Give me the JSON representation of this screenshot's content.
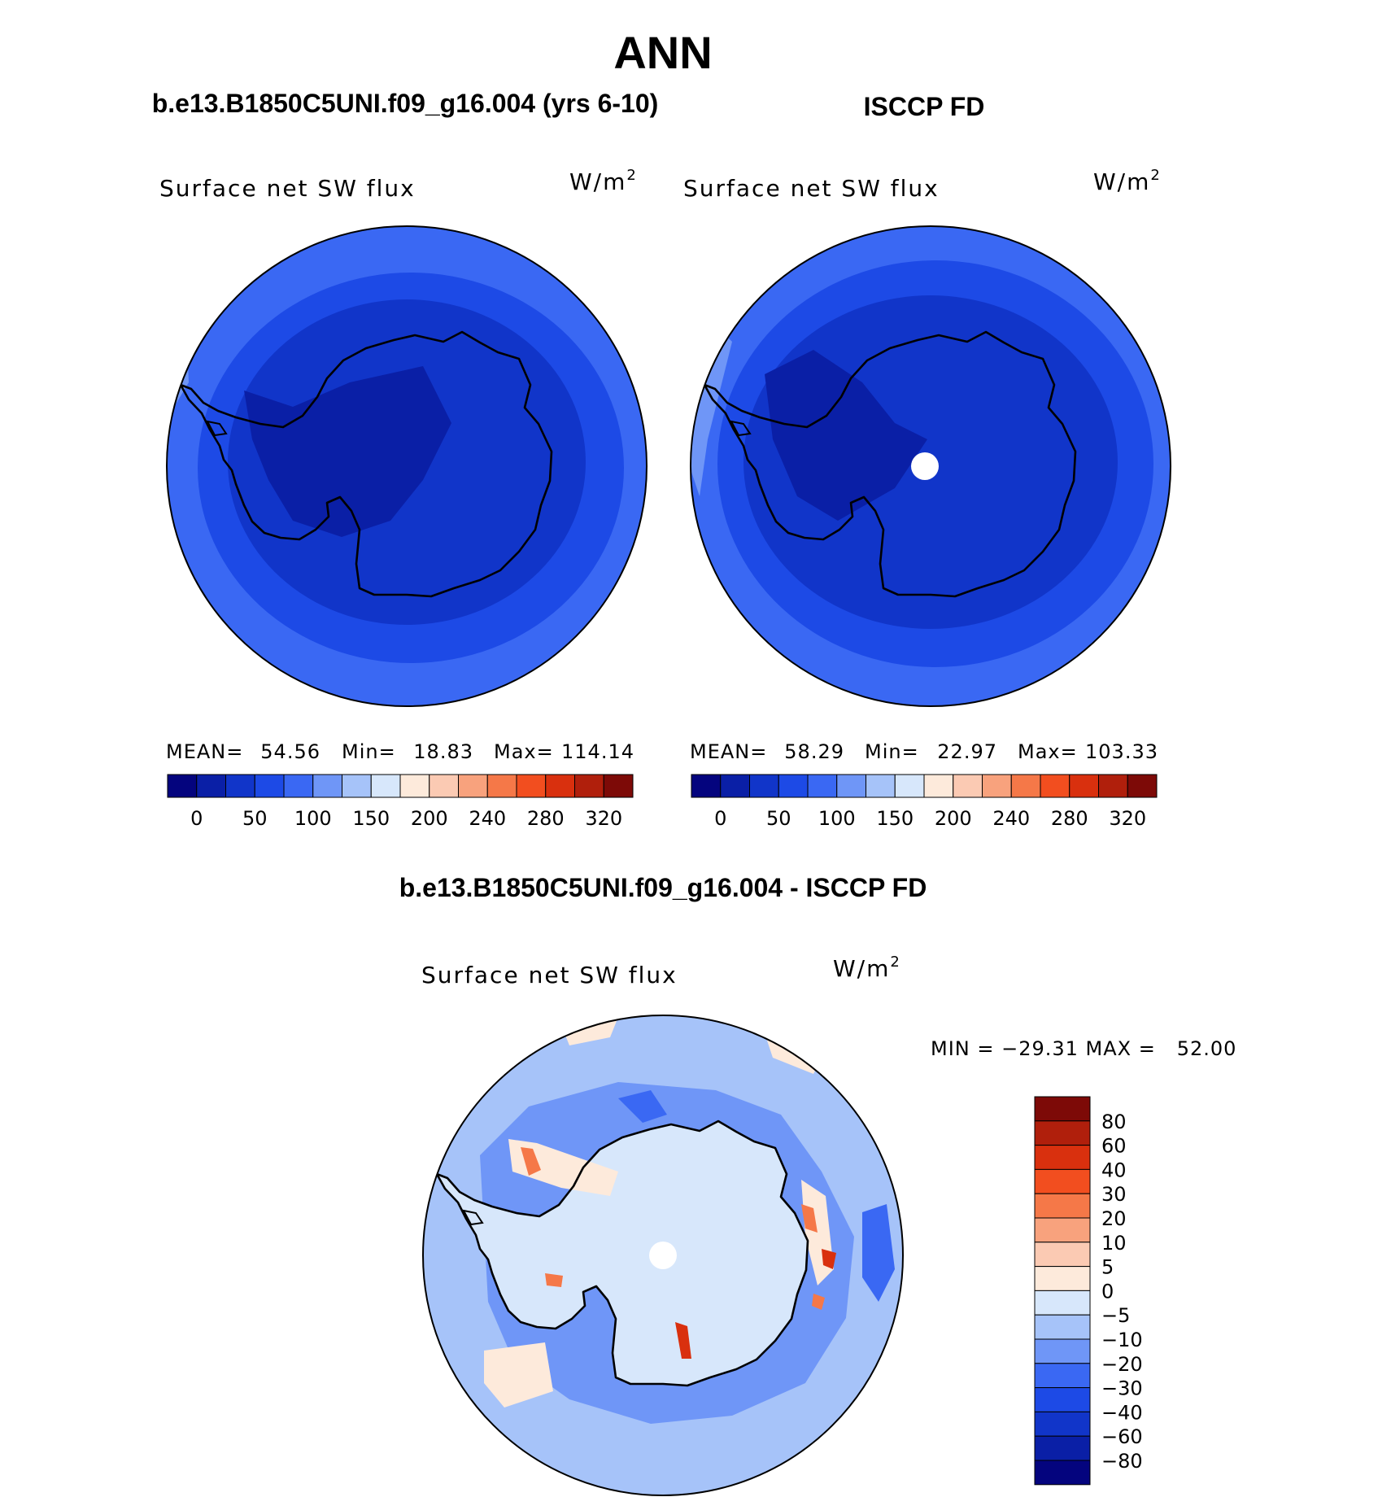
{
  "figure": {
    "season": "ANN",
    "left_title": "b.e13.B1850C5UNI.f09_g16.004 (yrs 6-10)",
    "right_title": "ISCCP FD",
    "diff_title": "b.e13.B1850C5UNI.f09_g16.004 - ISCCP FD"
  },
  "panels": [
    {
      "variable": "Surface net SW flux",
      "units_base": "W/m",
      "units_exp": "2",
      "mean_label": "MEAN=",
      "mean_value": "54.56",
      "min_label": "Min=",
      "min_value": "18.83",
      "max_label": "Max=",
      "max_value": "114.14"
    },
    {
      "variable": "Surface net SW flux",
      "units_base": "W/m",
      "units_exp": "2",
      "mean_label": "MEAN=",
      "mean_value": "58.29",
      "min_label": "Min=",
      "min_value": "22.97",
      "max_label": "Max=",
      "max_value": "103.33"
    }
  ],
  "diff_panel": {
    "variable": "Surface net SW flux",
    "units_base": "W/m",
    "units_exp": "2",
    "minmax_text": "MIN = −29.31 MAX =   52.00"
  },
  "colorbar_main": {
    "colors": [
      "#04047e",
      "#0a1fa6",
      "#1135c9",
      "#1d4ae6",
      "#3a68f3",
      "#6f96f7",
      "#a6c3f9",
      "#d7e7fb",
      "#fdeadb",
      "#fbcab3",
      "#f8a27d",
      "#f57848",
      "#f24e1f",
      "#d9300e",
      "#b01f0c",
      "#7d0a07"
    ],
    "labels": [
      "0",
      "50",
      "100",
      "150",
      "200",
      "240",
      "280",
      "320"
    ]
  },
  "colorbar_diff": {
    "colors": [
      "#7d0a07",
      "#b01f0c",
      "#d9300e",
      "#f24e1f",
      "#f57848",
      "#f8a27d",
      "#fbcab3",
      "#fdeadb",
      "#d7e7fb",
      "#a6c3f9",
      "#6f96f7",
      "#3a68f3",
      "#1d4ae6",
      "#1135c9",
      "#0a1fa6",
      "#04047e"
    ],
    "labels": [
      "80",
      "60",
      "40",
      "30",
      "20",
      "10",
      "5",
      "0",
      "−5",
      "−10",
      "−20",
      "−30",
      "−40",
      "−60",
      "−80"
    ]
  },
  "map_colors": {
    "ocean_far": "#3a68f3",
    "ocean_mid": "#1d4ae6",
    "ocean_near": "#1135c9",
    "land": "#0a1fa6",
    "deep": "#0a1fa6",
    "ocean_light": "#6f96f7",
    "diff_base": "#a6c3f9",
    "diff_land": "#d7e7fb",
    "diff_mid": "#6f96f7",
    "diff_strong": "#3a68f3",
    "diff_warm": "#fdeadb",
    "diff_hot": "#f57848",
    "diff_hotter": "#d9300e"
  }
}
